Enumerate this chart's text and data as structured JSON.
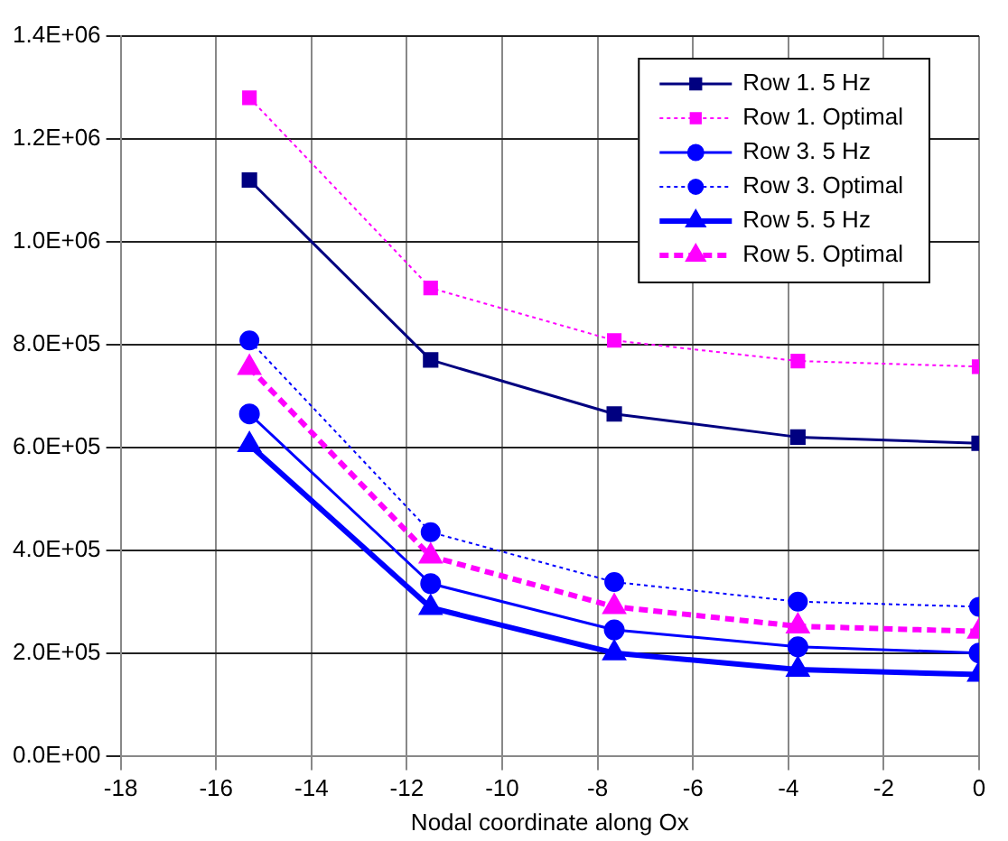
{
  "chart_data": {
    "type": "line",
    "xlabel": "Nodal coordinate along Ox",
    "x": [
      -15.3,
      -11.5,
      -7.65,
      -3.8,
      0
    ],
    "xlim": [
      -18,
      0
    ],
    "xticks": [
      -18,
      -16,
      -14,
      -12,
      -10,
      -8,
      -6,
      -4,
      -2,
      0
    ],
    "ylim": [
      0,
      1400000
    ],
    "yticks": [
      {
        "value": 0,
        "label": "0.0E+00"
      },
      {
        "value": 200000,
        "label": "2.0E+05"
      },
      {
        "value": 400000,
        "label": "4.0E+05"
      },
      {
        "value": 600000,
        "label": "6.0E+05"
      },
      {
        "value": 800000,
        "label": "8.0E+05"
      },
      {
        "value": 1000000,
        "label": "1.0E+06"
      },
      {
        "value": 1200000,
        "label": "1.2E+06"
      },
      {
        "value": 1400000,
        "label": "1.4E+06"
      }
    ],
    "grid": true,
    "legend": "top right",
    "series": [
      {
        "name": "Row 1. 5 Hz",
        "color": "#000080",
        "marker": "square",
        "line_style": "solid",
        "values": [
          1120000,
          770000,
          665000,
          620000,
          608000
        ]
      },
      {
        "name": "Row 1. Optimal",
        "color": "#ff00ff",
        "marker": "square",
        "line_style": "dotted",
        "values": [
          1280000,
          910000,
          808000,
          768000,
          757000
        ]
      },
      {
        "name": "Row 3. 5 Hz",
        "color": "#0000ff",
        "marker": "circle",
        "line_style": "solid",
        "values": [
          665000,
          335000,
          245000,
          212000,
          200000
        ]
      },
      {
        "name": "Row 3. Optimal",
        "color": "#0000ff",
        "marker": "circle",
        "line_style": "dotted",
        "values": [
          808000,
          435000,
          338000,
          300000,
          290000
        ]
      },
      {
        "name": "Row 5. 5 Hz",
        "color": "#0000ff",
        "marker": "triangle",
        "line_style": "solid",
        "values": [
          605000,
          288000,
          200000,
          168000,
          158000
        ]
      },
      {
        "name": "Row 5. Optimal",
        "color": "#ff00ff",
        "marker": "triangle",
        "line_style": "dashed",
        "values": [
          755000,
          388000,
          290000,
          252000,
          242000
        ]
      }
    ]
  }
}
